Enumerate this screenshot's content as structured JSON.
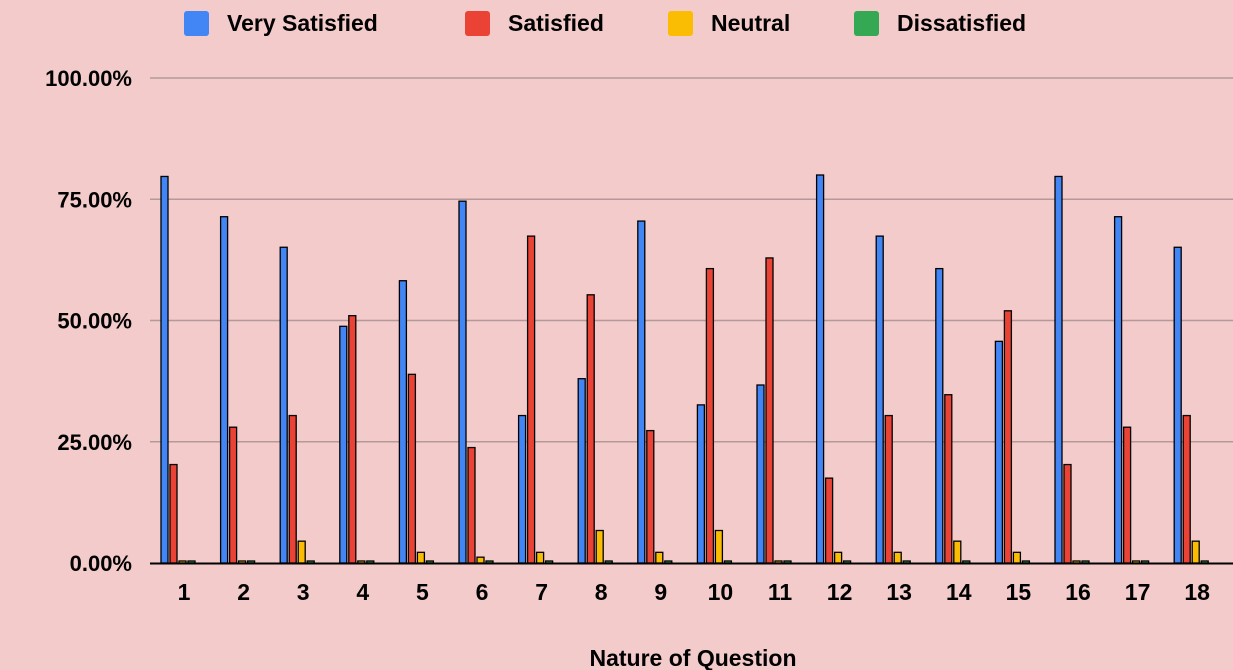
{
  "chart_data": {
    "type": "bar",
    "title": "",
    "xlabel": "Nature of Question",
    "ylabel": "",
    "ylim": [
      0,
      100
    ],
    "yticks": [
      "0.00%",
      "25.00%",
      "50.00%",
      "75.00%",
      "100.00%"
    ],
    "ytick_values": [
      0,
      25,
      50,
      75,
      100
    ],
    "grid": true,
    "legend_position": "top",
    "categories": [
      "1",
      "2",
      "3",
      "4",
      "5",
      "6",
      "7",
      "8",
      "9",
      "10",
      "11",
      "12",
      "13",
      "14",
      "15",
      "16",
      "17",
      "18"
    ],
    "series": [
      {
        "name": "Very Satisfied",
        "color": "#4285f4",
        "values": [
          79.7,
          71.4,
          65.1,
          48.8,
          58.2,
          74.6,
          30.4,
          38.0,
          70.5,
          32.6,
          36.7,
          80.0,
          67.4,
          60.7,
          45.7,
          79.7,
          71.4,
          65.1
        ]
      },
      {
        "name": "Satisfied",
        "color": "#ea4335",
        "values": [
          20.3,
          28.0,
          30.4,
          51.0,
          38.9,
          23.8,
          67.4,
          55.3,
          27.3,
          60.7,
          62.9,
          17.5,
          30.4,
          34.7,
          52.0,
          20.3,
          28.0,
          30.4
        ]
      },
      {
        "name": "Neutral",
        "color": "#fbbc04",
        "values": [
          0,
          0,
          4.5,
          0,
          2.2,
          1.2,
          2.2,
          6.7,
          2.2,
          6.7,
          0,
          2.2,
          2.2,
          4.5,
          2.2,
          0,
          0,
          4.5
        ]
      },
      {
        "name": "Dissatisfied",
        "color": "#34a853",
        "values": [
          0,
          0,
          0,
          0,
          0,
          0,
          0,
          0,
          0,
          0,
          0,
          0,
          0,
          0,
          0,
          0,
          0,
          0
        ]
      }
    ]
  }
}
